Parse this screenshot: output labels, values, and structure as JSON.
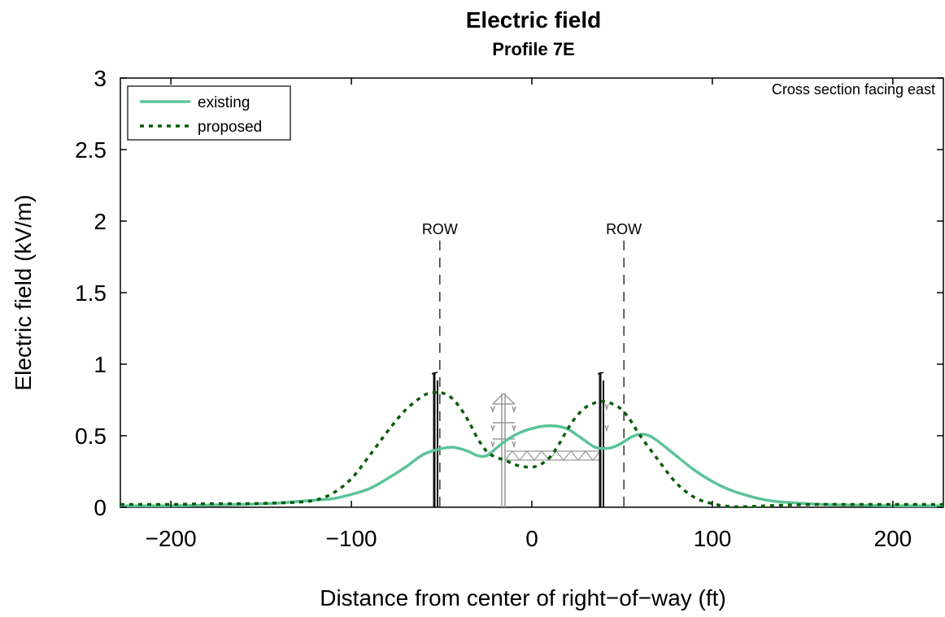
{
  "chart_data": {
    "type": "line",
    "title": "Electric field",
    "subtitle": "Profile 7E",
    "xlabel": "Distance from center of right−of−way (ft)",
    "ylabel": "Electric field (kV/m)",
    "xlim": [
      -228,
      228
    ],
    "ylim": [
      0,
      3
    ],
    "xticks": [
      -200,
      -100,
      0,
      100,
      200
    ],
    "xtick_labels": [
      "−200",
      "−100",
      "0",
      "100",
      "200"
    ],
    "yticks": [
      0,
      0.5,
      1,
      1.5,
      2,
      2.5,
      3
    ],
    "ytick_labels": [
      "0",
      "0.5",
      "1",
      "1.5",
      "2",
      "2.5",
      "3"
    ],
    "grid": false,
    "legend_position": "top-left",
    "annotation": "Cross section facing east",
    "row_markers": [
      {
        "x": -51,
        "label": "ROW"
      },
      {
        "x": 51,
        "label": "ROW"
      }
    ],
    "series": [
      {
        "name": "existing",
        "style": "solid",
        "color": "#5cc39a",
        "x": [
          -228,
          -200,
          -180,
          -160,
          -140,
          -120,
          -110,
          -100,
          -90,
          -80,
          -70,
          -60,
          -50,
          -44,
          -40,
          -35,
          -30,
          -25,
          -20,
          -15,
          -10,
          -5,
          0,
          5,
          10,
          15,
          20,
          25,
          30,
          35,
          40,
          45,
          50,
          55,
          60,
          65,
          70,
          80,
          90,
          100,
          110,
          120,
          130,
          140,
          160,
          180,
          200,
          228
        ],
        "y": [
          0.01,
          0.01,
          0.015,
          0.02,
          0.03,
          0.05,
          0.06,
          0.09,
          0.13,
          0.2,
          0.28,
          0.37,
          0.41,
          0.42,
          0.41,
          0.39,
          0.36,
          0.36,
          0.41,
          0.46,
          0.5,
          0.53,
          0.55,
          0.565,
          0.57,
          0.565,
          0.545,
          0.505,
          0.46,
          0.42,
          0.41,
          0.42,
          0.45,
          0.49,
          0.51,
          0.5,
          0.46,
          0.36,
          0.26,
          0.18,
          0.12,
          0.08,
          0.05,
          0.035,
          0.02,
          0.015,
          0.01,
          0.01
        ]
      },
      {
        "name": "proposed",
        "style": "dotted",
        "color": "#0a5c0a",
        "x": [
          -228,
          -200,
          -180,
          -160,
          -140,
          -130,
          -120,
          -110,
          -100,
          -90,
          -80,
          -70,
          -60,
          -55,
          -50,
          -45,
          -40,
          -35,
          -30,
          -25,
          -20,
          -15,
          -10,
          -5,
          0,
          5,
          10,
          15,
          20,
          25,
          30,
          35,
          40,
          45,
          50,
          55,
          60,
          70,
          80,
          90,
          100,
          110,
          120,
          130,
          140,
          160,
          180,
          200,
          228
        ],
        "y": [
          0.02,
          0.02,
          0.025,
          0.025,
          0.03,
          0.035,
          0.05,
          0.1,
          0.2,
          0.36,
          0.53,
          0.68,
          0.78,
          0.8,
          0.8,
          0.77,
          0.7,
          0.6,
          0.48,
          0.39,
          0.35,
          0.33,
          0.3,
          0.285,
          0.28,
          0.3,
          0.35,
          0.44,
          0.55,
          0.64,
          0.7,
          0.73,
          0.74,
          0.72,
          0.68,
          0.6,
          0.5,
          0.33,
          0.17,
          0.07,
          0.025,
          0.005,
          0.005,
          0.01,
          0.015,
          0.02,
          0.02,
          0.02,
          0.02
        ]
      }
    ]
  }
}
